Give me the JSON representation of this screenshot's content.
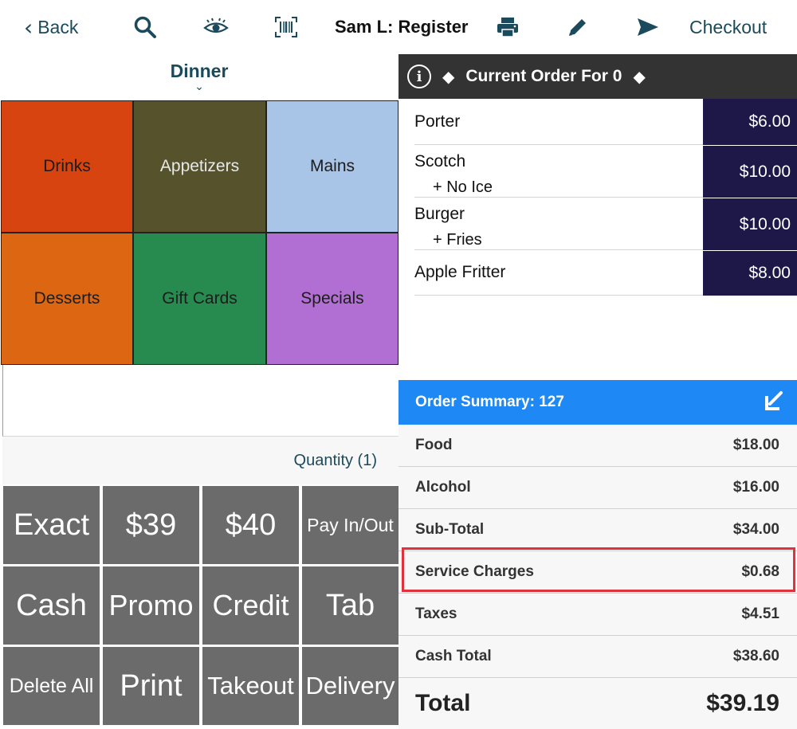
{
  "topbar": {
    "back_label": "Back",
    "title": "Sam L: Register",
    "checkout_label": "Checkout",
    "icons": [
      "search-icon",
      "eye-icon",
      "barcode-icon",
      "printer-icon",
      "pencil-icon",
      "send-icon"
    ]
  },
  "menu": {
    "selected": "Dinner"
  },
  "categories": [
    {
      "label": "Drinks",
      "color": "#d8440f"
    },
    {
      "label": "Appetizers",
      "color": "#56532c"
    },
    {
      "label": "Mains",
      "color": "#a8c4e6"
    },
    {
      "label": "Desserts",
      "color": "#dd6613"
    },
    {
      "label": "Gift Cards",
      "color": "#278a4f"
    },
    {
      "label": "Specials",
      "color": "#b26fd3"
    }
  ],
  "quantity_label": "Quantity (1)",
  "actions": [
    "Exact",
    "$39",
    "$40",
    "Pay In/Out",
    "Cash",
    "Promo",
    "Credit",
    "Tab",
    "Delete All",
    "Print",
    "Takeout",
    "Delivery"
  ],
  "order": {
    "header": "Current Order For 0",
    "items": [
      {
        "name": "Porter",
        "modifier": "",
        "price": "$6.00"
      },
      {
        "name": "Scotch",
        "modifier": "+ No Ice",
        "price": "$10.00"
      },
      {
        "name": "Burger",
        "modifier": "+ Fries",
        "price": "$10.00"
      },
      {
        "name": "Apple Fritter",
        "modifier": "",
        "price": "$8.00"
      }
    ]
  },
  "summary": {
    "header": "Order Summary: 127",
    "rows": [
      {
        "label": "Food",
        "value": "$18.00"
      },
      {
        "label": "Alcohol",
        "value": "$16.00"
      },
      {
        "label": "Sub-Total",
        "value": "$34.00"
      },
      {
        "label": "Service Charges",
        "value": "$0.68"
      },
      {
        "label": "Taxes",
        "value": "$4.51"
      },
      {
        "label": "Cash Total",
        "value": "$38.60"
      },
      {
        "label": "Total",
        "value": "$39.19"
      }
    ],
    "highlight_color": "#e0323c"
  }
}
